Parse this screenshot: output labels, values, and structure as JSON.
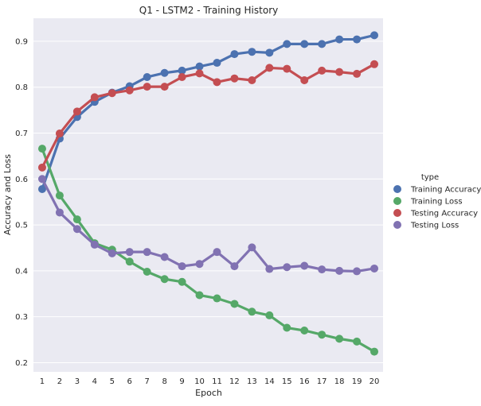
{
  "chart_data": {
    "type": "line",
    "title": "Q1 - LSTM2 - Training History",
    "xlabel": "Epoch",
    "ylabel": "Accuracy and Loss",
    "categories": [
      "1",
      "2",
      "3",
      "4",
      "5",
      "6",
      "7",
      "8",
      "9",
      "10",
      "11",
      "12",
      "13",
      "14",
      "15",
      "16",
      "17",
      "18",
      "19",
      "20"
    ],
    "ylim": [
      0.18,
      0.95
    ],
    "yticks": [
      "0.2",
      "0.3",
      "0.4",
      "0.5",
      "0.6",
      "0.7",
      "0.8",
      "0.9"
    ],
    "grid": true,
    "legend_title": "type",
    "legend_position": "right",
    "series": [
      {
        "name": "Training Accuracy",
        "color": "#4c72b0",
        "values": [
          0.578,
          0.688,
          0.735,
          0.768,
          0.788,
          0.802,
          0.822,
          0.831,
          0.836,
          0.845,
          0.853,
          0.872,
          0.877,
          0.875,
          0.894,
          0.894,
          0.894,
          0.904,
          0.904,
          0.913
        ]
      },
      {
        "name": "Training Loss",
        "color": "#55a868",
        "values": [
          0.666,
          0.564,
          0.512,
          0.46,
          0.446,
          0.42,
          0.398,
          0.382,
          0.376,
          0.347,
          0.34,
          0.328,
          0.311,
          0.303,
          0.276,
          0.27,
          0.261,
          0.252,
          0.246,
          0.224
        ]
      },
      {
        "name": "Testing Accuracy",
        "color": "#c44e52",
        "values": [
          0.625,
          0.699,
          0.747,
          0.778,
          0.787,
          0.793,
          0.801,
          0.801,
          0.822,
          0.83,
          0.811,
          0.819,
          0.815,
          0.842,
          0.84,
          0.815,
          0.836,
          0.833,
          0.829,
          0.85
        ]
      },
      {
        "name": "Testing Loss",
        "color": "#8172b2",
        "values": [
          0.6,
          0.527,
          0.491,
          0.457,
          0.438,
          0.441,
          0.441,
          0.43,
          0.41,
          0.415,
          0.441,
          0.41,
          0.451,
          0.404,
          0.408,
          0.411,
          0.403,
          0.4,
          0.399,
          0.405
        ]
      }
    ]
  }
}
